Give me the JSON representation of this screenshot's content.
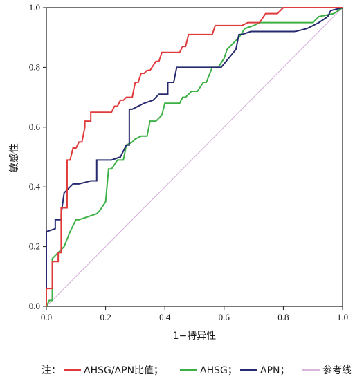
{
  "chart_data": {
    "type": "line",
    "title": "",
    "xlabel": "1−特异性",
    "ylabel": "敏感性",
    "xlim": [
      0,
      1
    ],
    "ylim": [
      0,
      1
    ],
    "x_ticks": [
      "0.0",
      "0.2",
      "0.4",
      "0.6",
      "0.8",
      "1.0"
    ],
    "y_ticks": [
      "0.0",
      "0.2",
      "0.4",
      "0.6",
      "0.8",
      "1.0"
    ],
    "grid": false,
    "legend_position": "bottom",
    "legend_prefix": "注：",
    "series": [
      {
        "name": "AHSG/APN比值；",
        "color": "#e03a3a",
        "x": [
          0,
          0,
          0.02,
          0.02,
          0.04,
          0.04,
          0.05,
          0.05,
          0.06,
          0.07,
          0.07,
          0.08,
          0.09,
          0.1,
          0.11,
          0.12,
          0.13,
          0.13,
          0.15,
          0.15,
          0.21,
          0.22,
          0.23,
          0.24,
          0.25,
          0.26,
          0.27,
          0.29,
          0.3,
          0.31,
          0.32,
          0.33,
          0.34,
          0.35,
          0.37,
          0.38,
          0.39,
          0.45,
          0.46,
          0.47,
          0.48,
          0.56,
          0.57,
          0.66,
          0.68,
          0.72,
          0.74,
          0.78,
          0.8,
          1.0
        ],
        "y": [
          0,
          0.06,
          0.06,
          0.15,
          0.15,
          0.18,
          0.18,
          0.33,
          0.33,
          0.33,
          0.49,
          0.49,
          0.53,
          0.53,
          0.55,
          0.55,
          0.6,
          0.62,
          0.62,
          0.65,
          0.65,
          0.65,
          0.67,
          0.67,
          0.69,
          0.69,
          0.7,
          0.7,
          0.75,
          0.75,
          0.78,
          0.78,
          0.79,
          0.79,
          0.82,
          0.82,
          0.85,
          0.85,
          0.87,
          0.87,
          0.91,
          0.91,
          0.94,
          0.94,
          0.95,
          0.95,
          0.98,
          0.98,
          1.0,
          1.0
        ]
      },
      {
        "name": "AHSG；",
        "color": "#3cb044",
        "x": [
          0,
          0.01,
          0.02,
          0.02,
          0.03,
          0.05,
          0.06,
          0.08,
          0.1,
          0.11,
          0.14,
          0.17,
          0.18,
          0.2,
          0.21,
          0.22,
          0.24,
          0.26,
          0.27,
          0.29,
          0.3,
          0.32,
          0.34,
          0.35,
          0.37,
          0.39,
          0.4,
          0.45,
          0.46,
          0.47,
          0.49,
          0.51,
          0.53,
          0.54,
          0.56,
          0.58,
          0.6,
          0.61,
          0.63,
          0.65,
          0.67,
          0.7,
          0.72,
          0.9,
          0.92,
          0.97,
          1.0
        ],
        "y": [
          0,
          0.02,
          0.02,
          0.16,
          0.17,
          0.19,
          0.2,
          0.25,
          0.29,
          0.29,
          0.3,
          0.31,
          0.32,
          0.35,
          0.46,
          0.46,
          0.49,
          0.49,
          0.54,
          0.55,
          0.56,
          0.57,
          0.57,
          0.62,
          0.62,
          0.64,
          0.68,
          0.68,
          0.7,
          0.7,
          0.72,
          0.72,
          0.75,
          0.75,
          0.8,
          0.8,
          0.83,
          0.86,
          0.88,
          0.9,
          0.93,
          0.94,
          0.95,
          0.95,
          0.97,
          0.98,
          1.0
        ]
      },
      {
        "name": "APN；",
        "color": "#262a6e",
        "x": [
          0,
          0,
          0.03,
          0.03,
          0.05,
          0.05,
          0.06,
          0.08,
          0.09,
          0.11,
          0.15,
          0.17,
          0.17,
          0.22,
          0.25,
          0.26,
          0.27,
          0.28,
          0.28,
          0.29,
          0.31,
          0.33,
          0.36,
          0.38,
          0.39,
          0.41,
          0.41,
          0.43,
          0.44,
          0.59,
          0.64,
          0.65,
          0.66,
          0.69,
          0.72,
          0.84,
          0.88,
          0.92,
          0.95,
          0.96,
          1.0
        ],
        "y": [
          0,
          0.25,
          0.26,
          0.29,
          0.29,
          0.31,
          0.38,
          0.4,
          0.41,
          0.41,
          0.42,
          0.42,
          0.49,
          0.49,
          0.5,
          0.52,
          0.54,
          0.54,
          0.66,
          0.66,
          0.67,
          0.68,
          0.69,
          0.71,
          0.71,
          0.71,
          0.75,
          0.75,
          0.8,
          0.8,
          0.86,
          0.91,
          0.91,
          0.92,
          0.92,
          0.92,
          0.93,
          0.95,
          0.97,
          0.99,
          1.0
        ]
      },
      {
        "name": "参考线",
        "color": "#d8b6dc",
        "x": [
          0,
          1
        ],
        "y": [
          0,
          1
        ]
      }
    ]
  }
}
